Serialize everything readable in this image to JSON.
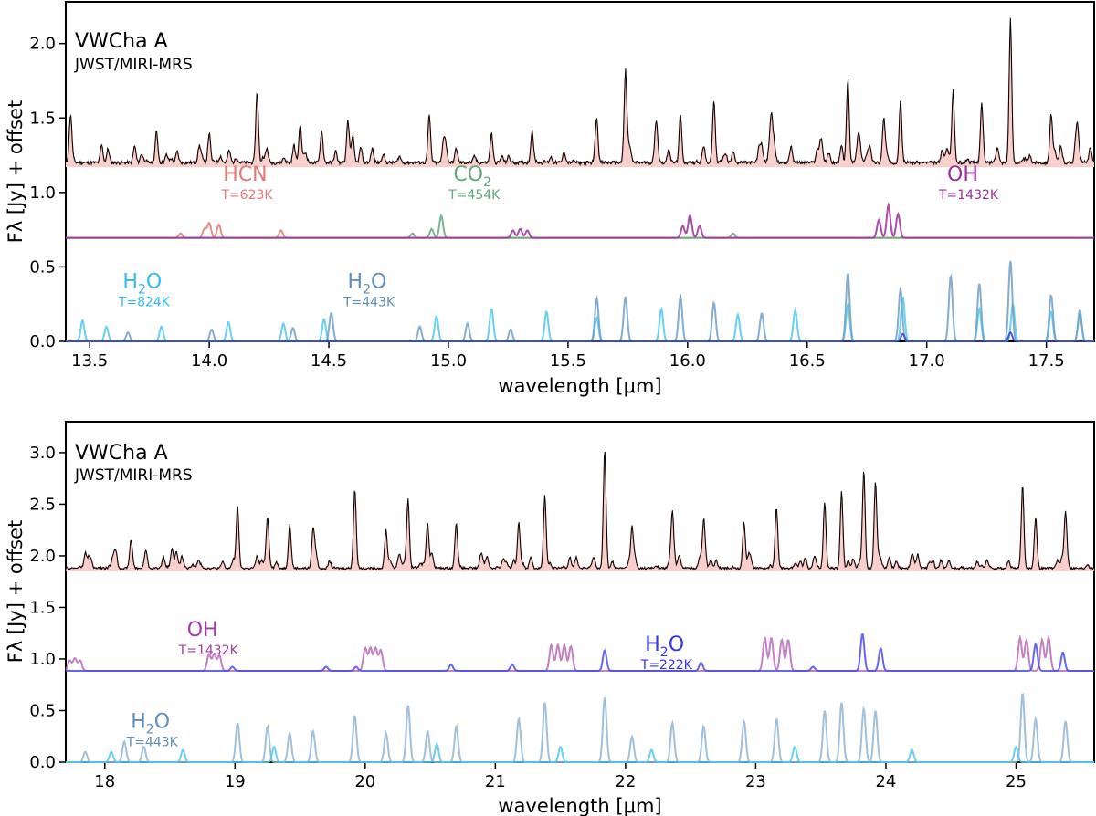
{
  "chart_data": [
    {
      "type": "line",
      "panel": "top",
      "title": "VWCha A",
      "subtitle": "JWST/MIRI-MRS",
      "xlabel": "wavelength [μm]",
      "ylabel": "Fλ [Jy] + offset",
      "xlim": [
        13.4,
        17.7
      ],
      "ylim": [
        0.0,
        2.28
      ],
      "xticks": [
        13.5,
        14.0,
        14.5,
        15.0,
        15.5,
        16.0,
        16.5,
        17.0,
        17.5
      ],
      "yticks": [
        0.0,
        0.5,
        1.0,
        1.5,
        2.0
      ],
      "series": [
        {
          "name": "observed",
          "color": "#000000",
          "baseline": 1.2,
          "peaks": [
            [
              13.42,
              0.32
            ],
            [
              13.55,
              0.12
            ],
            [
              13.78,
              0.13
            ],
            [
              14.0,
              0.2
            ],
            [
              14.2,
              0.48
            ],
            [
              14.38,
              0.26
            ],
            [
              14.47,
              0.22
            ],
            [
              14.58,
              0.28
            ],
            [
              14.92,
              0.32
            ],
            [
              14.98,
              0.15
            ],
            [
              15.18,
              0.2
            ],
            [
              15.35,
              0.22
            ],
            [
              15.62,
              0.3
            ],
            [
              15.74,
              0.62
            ],
            [
              15.87,
              0.24
            ],
            [
              15.97,
              0.32
            ],
            [
              16.11,
              0.42
            ],
            [
              16.35,
              0.25
            ],
            [
              16.67,
              0.57
            ],
            [
              16.82,
              0.3
            ],
            [
              16.89,
              0.42
            ],
            [
              17.11,
              0.48
            ],
            [
              17.23,
              0.4
            ],
            [
              17.35,
              0.96
            ],
            [
              17.52,
              0.33
            ],
            [
              17.63,
              0.2
            ]
          ],
          "noise_density": 90
        },
        {
          "name": "model fit",
          "color": "#e08080",
          "baseline": 1.2
        },
        {
          "name": "HCN",
          "color": "#e07a72",
          "baseline": 0.695,
          "temp": "T=623K",
          "peaks": [
            [
              13.88,
              0.03
            ],
            [
              13.98,
              0.06
            ],
            [
              14.0,
              0.1
            ],
            [
              14.04,
              0.09
            ],
            [
              14.3,
              0.05
            ]
          ]
        },
        {
          "name": "CO2",
          "color": "#5fa87c",
          "baseline": 0.695,
          "temp": "T=454K",
          "peaks": [
            [
              14.85,
              0.03
            ],
            [
              14.93,
              0.06
            ],
            [
              14.97,
              0.15
            ],
            [
              16.19,
              0.03
            ]
          ]
        },
        {
          "name": "OH",
          "color": "#9b2f9b",
          "baseline": 0.695,
          "temp": "T=1432K",
          "peaks": [
            [
              15.27,
              0.05
            ],
            [
              15.3,
              0.06
            ],
            [
              15.33,
              0.05
            ],
            [
              15.98,
              0.08
            ],
            [
              16.01,
              0.15
            ],
            [
              16.05,
              0.08
            ],
            [
              16.8,
              0.12
            ],
            [
              16.84,
              0.22
            ],
            [
              16.88,
              0.16
            ]
          ]
        },
        {
          "name": "H2O",
          "color": "#4fc8ef",
          "baseline": 0.0,
          "temp": "T=824K",
          "peaks": [
            [
              13.47,
              0.14
            ],
            [
              13.57,
              0.1
            ],
            [
              13.8,
              0.1
            ],
            [
              14.08,
              0.13
            ],
            [
              14.31,
              0.12
            ],
            [
              14.48,
              0.15
            ],
            [
              14.95,
              0.17
            ],
            [
              15.18,
              0.22
            ],
            [
              15.41,
              0.2
            ],
            [
              15.62,
              0.16
            ],
            [
              15.89,
              0.22
            ],
            [
              16.21,
              0.18
            ],
            [
              16.45,
              0.21
            ],
            [
              16.67,
              0.25
            ],
            [
              16.9,
              0.3
            ],
            [
              17.22,
              0.22
            ],
            [
              17.36,
              0.25
            ],
            [
              17.52,
              0.2
            ],
            [
              17.64,
              0.19
            ]
          ]
        },
        {
          "name": "H2O",
          "color": "#6e9fc8",
          "baseline": 0.0,
          "temp": "T=443K",
          "peaks": [
            [
              13.66,
              0.06
            ],
            [
              14.01,
              0.08
            ],
            [
              14.35,
              0.09
            ],
            [
              14.51,
              0.19
            ],
            [
              14.88,
              0.1
            ],
            [
              15.08,
              0.12
            ],
            [
              15.26,
              0.08
            ],
            [
              15.62,
              0.29
            ],
            [
              15.74,
              0.3
            ],
            [
              15.97,
              0.3
            ],
            [
              16.11,
              0.26
            ],
            [
              16.31,
              0.19
            ],
            [
              16.67,
              0.46
            ],
            [
              16.89,
              0.35
            ],
            [
              17.1,
              0.44
            ],
            [
              17.22,
              0.39
            ],
            [
              17.35,
              0.54
            ],
            [
              17.52,
              0.31
            ],
            [
              17.64,
              0.21
            ]
          ]
        },
        {
          "name": "H2O cold",
          "color": "#3a3adc",
          "baseline": 0.0,
          "peaks": [
            [
              16.9,
              0.05
            ],
            [
              17.35,
              0.06
            ]
          ]
        }
      ],
      "labels": [
        {
          "text": "HCN",
          "sub": "",
          "temp": "T=623K",
          "color": "#e07a72",
          "x": 14.15,
          "y": 1.08
        },
        {
          "text": "CO",
          "sub": "2",
          "temp": "T=454K",
          "color": "#5fa87c",
          "x": 15.1,
          "y": 1.08
        },
        {
          "text": "OH",
          "sub": "",
          "temp": "T=1432K",
          "color": "#9b2f9b",
          "x": 17.15,
          "y": 1.08
        },
        {
          "text": "H",
          "sub": "2",
          "tail": "O",
          "temp": "T=824K",
          "color": "#33bbef",
          "x": 13.72,
          "y": 0.36
        },
        {
          "text": "H",
          "sub": "2",
          "tail": "O",
          "temp": "T=443K",
          "color": "#5f8fbd",
          "x": 14.66,
          "y": 0.36
        }
      ]
    },
    {
      "type": "line",
      "panel": "bottom",
      "title": "VWCha A",
      "subtitle": "JWST/MIRI-MRS",
      "xlabel": "wavelength [μm]",
      "ylabel": "Fλ [Jy] + offset",
      "xlim": [
        17.7,
        25.6
      ],
      "ylim": [
        0.0,
        3.3
      ],
      "xticks": [
        18,
        19,
        20,
        21,
        22,
        23,
        24,
        25
      ],
      "yticks": [
        0.0,
        0.5,
        1.0,
        1.5,
        2.0,
        2.5,
        3.0
      ],
      "series": [
        {
          "name": "observed",
          "color": "#000000",
          "baseline": 1.88,
          "peaks": [
            [
              17.85,
              0.15
            ],
            [
              18.2,
              0.25
            ],
            [
              18.55,
              0.15
            ],
            [
              19.02,
              0.55
            ],
            [
              19.25,
              0.5
            ],
            [
              19.42,
              0.4
            ],
            [
              19.6,
              0.35
            ],
            [
              19.92,
              0.75
            ],
            [
              20.16,
              0.35
            ],
            [
              20.33,
              0.6
            ],
            [
              20.48,
              0.35
            ],
            [
              20.7,
              0.4
            ],
            [
              21.18,
              0.45
            ],
            [
              21.38,
              0.7
            ],
            [
              21.84,
              1.15
            ],
            [
              22.05,
              0.3
            ],
            [
              22.36,
              0.55
            ],
            [
              22.6,
              0.45
            ],
            [
              22.91,
              0.45
            ],
            [
              23.16,
              0.55
            ],
            [
              23.53,
              0.65
            ],
            [
              23.66,
              0.75
            ],
            [
              23.83,
              0.95
            ],
            [
              23.92,
              0.85
            ],
            [
              25.05,
              0.8
            ],
            [
              25.15,
              0.5
            ],
            [
              25.38,
              0.55
            ]
          ],
          "noise_density": 130
        },
        {
          "name": "model fit",
          "color": "#e08080",
          "baseline": 1.88
        },
        {
          "name": "OH",
          "color": "#b86ab8",
          "baseline": 0.885,
          "temp": "T=1432K",
          "peaks": [
            [
              17.73,
              0.1
            ],
            [
              17.77,
              0.12
            ],
            [
              17.81,
              0.1
            ],
            [
              18.8,
              0.16
            ],
            [
              18.84,
              0.16
            ],
            [
              18.88,
              0.15
            ],
            [
              20.0,
              0.22
            ],
            [
              20.04,
              0.22
            ],
            [
              20.08,
              0.22
            ],
            [
              20.12,
              0.2
            ],
            [
              21.43,
              0.25
            ],
            [
              21.48,
              0.25
            ],
            [
              21.53,
              0.25
            ],
            [
              21.58,
              0.24
            ],
            [
              23.07,
              0.32
            ],
            [
              23.12,
              0.32
            ],
            [
              23.2,
              0.3
            ],
            [
              23.25,
              0.3
            ],
            [
              25.03,
              0.32
            ],
            [
              25.08,
              0.3
            ],
            [
              25.2,
              0.3
            ],
            [
              25.25,
              0.32
            ]
          ]
        },
        {
          "name": "H2O",
          "color": "#4b4bef",
          "baseline": 0.885,
          "temp": "T=222K",
          "peaks": [
            [
              18.98,
              0.04
            ],
            [
              19.7,
              0.04
            ],
            [
              19.93,
              0.04
            ],
            [
              20.66,
              0.06
            ],
            [
              21.13,
              0.06
            ],
            [
              21.84,
              0.2
            ],
            [
              22.58,
              0.08
            ],
            [
              23.44,
              0.04
            ],
            [
              23.82,
              0.36
            ],
            [
              23.96,
              0.22
            ],
            [
              25.15,
              0.26
            ],
            [
              25.36,
              0.18
            ]
          ]
        },
        {
          "name": "H2O",
          "color": "#8fb5d6",
          "baseline": 0.0,
          "temp": "T=443K",
          "peaks": [
            [
              17.85,
              0.1
            ],
            [
              18.15,
              0.2
            ],
            [
              18.3,
              0.15
            ],
            [
              19.02,
              0.38
            ],
            [
              19.25,
              0.35
            ],
            [
              19.42,
              0.28
            ],
            [
              19.6,
              0.3
            ],
            [
              19.92,
              0.45
            ],
            [
              20.16,
              0.28
            ],
            [
              20.33,
              0.55
            ],
            [
              20.48,
              0.3
            ],
            [
              20.7,
              0.35
            ],
            [
              21.18,
              0.42
            ],
            [
              21.38,
              0.58
            ],
            [
              21.84,
              0.63
            ],
            [
              22.05,
              0.25
            ],
            [
              22.36,
              0.38
            ],
            [
              22.6,
              0.35
            ],
            [
              22.91,
              0.4
            ],
            [
              23.16,
              0.42
            ],
            [
              23.53,
              0.5
            ],
            [
              23.66,
              0.58
            ],
            [
              23.83,
              0.52
            ],
            [
              23.92,
              0.5
            ],
            [
              25.05,
              0.67
            ],
            [
              25.15,
              0.42
            ],
            [
              25.38,
              0.4
            ]
          ]
        },
        {
          "name": "H2O warm",
          "color": "#4fc8ef",
          "baseline": 0.0,
          "peaks": [
            [
              18.05,
              0.1
            ],
            [
              18.6,
              0.12
            ],
            [
              19.3,
              0.15
            ],
            [
              20.55,
              0.18
            ],
            [
              21.5,
              0.15
            ],
            [
              22.2,
              0.12
            ],
            [
              23.3,
              0.15
            ],
            [
              24.2,
              0.12
            ],
            [
              25.0,
              0.15
            ]
          ]
        }
      ],
      "labels": [
        {
          "text": "OH",
          "sub": "",
          "temp": "T=1432K",
          "color": "#a23ea2",
          "x": 18.75,
          "y": 1.22
        },
        {
          "text": "H",
          "sub": "2",
          "tail": "O",
          "temp": "T=222K",
          "color": "#3434e8",
          "x": 22.3,
          "y": 1.08
        },
        {
          "text": "H",
          "sub": "2",
          "tail": "O",
          "temp": "T=443K",
          "color": "#5f8fbd",
          "x": 18.35,
          "y": 0.33
        }
      ]
    }
  ]
}
